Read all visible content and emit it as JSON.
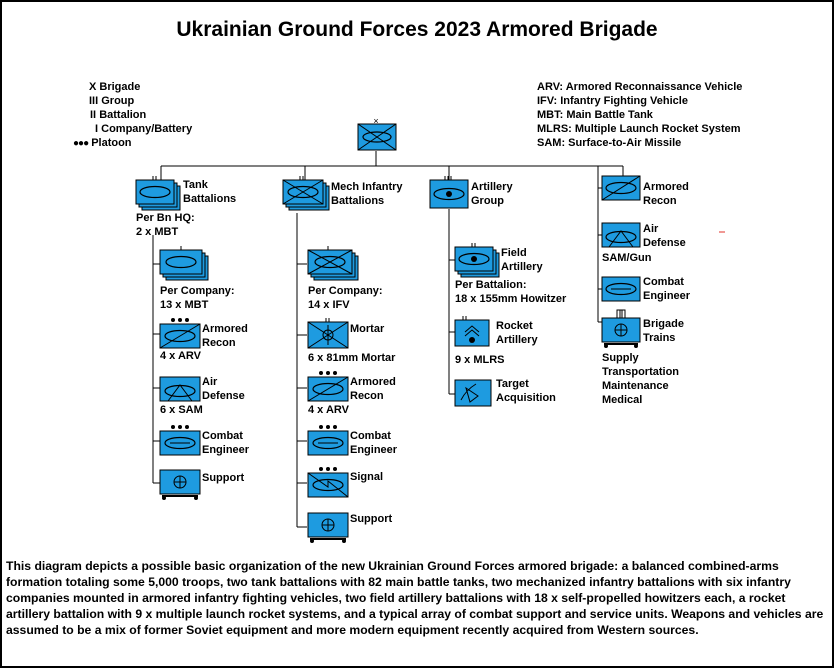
{
  "title": "Ukrainian Ground Forces 2023 Armored Brigade",
  "echelon_legend": [
    {
      "symbol": "X",
      "text": "Brigade"
    },
    {
      "symbol": "III",
      "text": "Group"
    },
    {
      "symbol": "II",
      "text": "Battalion"
    },
    {
      "symbol": "I",
      "text": "Company/Battery"
    },
    {
      "symbol": "●●●",
      "text": "Platoon"
    }
  ],
  "abbreviations": [
    "ARV: Armored Reconnaissance Vehicle",
    "IFV: Infantry Fighting Vehicle",
    "MBT: Main Battle Tank",
    "MLRS: Multiple Launch Rocket System",
    "SAM: Surface-to-Air Missile"
  ],
  "hq": {
    "echelon": "X"
  },
  "tank": {
    "title": [
      "Tank",
      "Battalions"
    ],
    "hq_note": [
      "Per Bn HQ:",
      "2 x MBT"
    ],
    "company": [
      "Per Company:",
      "13 x MBT"
    ],
    "recon": [
      "Armored",
      "Recon"
    ],
    "recon_count": "4 x ARV",
    "ad": [
      "Air",
      "Defense"
    ],
    "ad_count": "6 x SAM",
    "eng": [
      "Combat",
      "Engineer"
    ],
    "support": "Support"
  },
  "mech": {
    "title": [
      "Mech Infantry",
      "Battalions"
    ],
    "company": [
      "Per Company:",
      "14 x IFV"
    ],
    "mortar": "Mortar",
    "mortar_count": "6 x 81mm Mortar",
    "recon": [
      "Armored",
      "Recon"
    ],
    "recon_count": "4 x ARV",
    "eng": [
      "Combat",
      "Engineer"
    ],
    "signal": "Signal",
    "support": "Support"
  },
  "arty": {
    "title": [
      "Artillery",
      "Group"
    ],
    "field": [
      "Field",
      "Artillery"
    ],
    "field_note": [
      "Per Battalion:",
      "18 x 155mm Howitzer"
    ],
    "rocket": [
      "Rocket",
      "Artillery"
    ],
    "rocket_count": "9 x MLRS",
    "target": [
      "Target",
      "Acquisition"
    ]
  },
  "right": {
    "recon": [
      "Armored",
      "Recon"
    ],
    "ad": [
      "Air",
      "Defense"
    ],
    "ad_note": "SAM/Gun",
    "eng": [
      "Combat",
      "Engineer"
    ],
    "trains": [
      "Brigade",
      "Trains"
    ],
    "trains_list": [
      "Supply",
      "Transportation",
      "Maintenance",
      "Medical"
    ]
  },
  "caption": "This diagram depicts a possible basic organization of the new Ukrainian Ground Forces armored brigade: a balanced combined-arms formation totaling some 5,000 troops, two tank battalions with 82 main battle tanks, two mechanized infantry battalions with six infantry companies mounted in armored infantry fighting vehicles, two field artillery battalions with 18 x self-propelled howitzers each, a rocket artillery battalion with 9 x multiple launch rocket systems, and a typical array of combat support and service units. Weapons and vehicles are assumed to be a mix of former Soviet equipment and more modern equipment recently acquired from Western sources.",
  "colors": {
    "unit_fill": "#1e9be0",
    "stroke": "#000000",
    "accent": "#e0302a"
  }
}
